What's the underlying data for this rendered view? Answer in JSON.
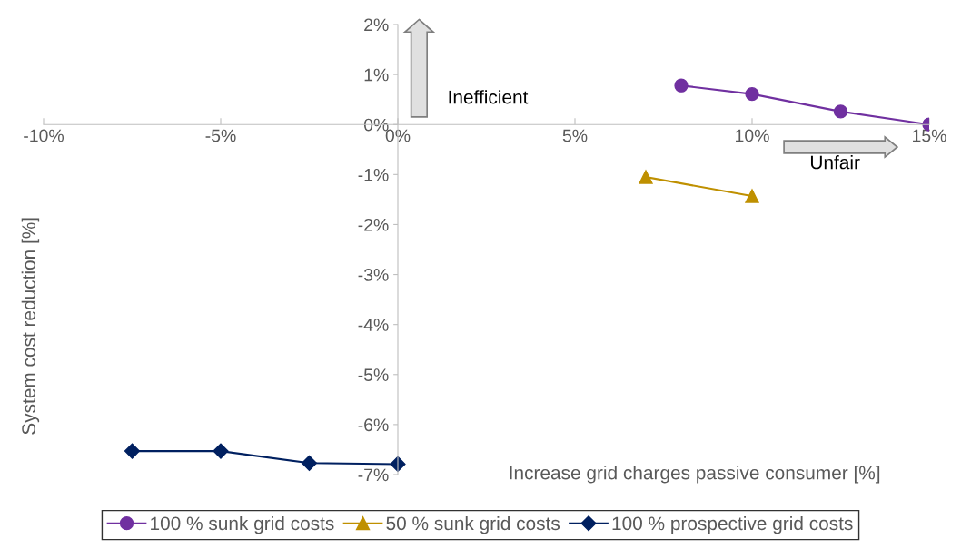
{
  "chart_data": {
    "type": "line",
    "xlabel": "Increase grid charges passive consumer [%]",
    "ylabel": "System cost reduction [%]",
    "series": [
      {
        "name": "100 % sunk grid costs",
        "color": "#7030a0",
        "marker": "circle",
        "x": [
          8,
          10,
          12.5,
          15
        ],
        "values": [
          0.78,
          0.61,
          0.26,
          0
        ]
      },
      {
        "name": "50 % sunk grid costs",
        "color": "#bf9000",
        "marker": "triangle",
        "x": [
          7,
          10
        ],
        "values": [
          -1.05,
          -1.43
        ]
      },
      {
        "name": "100 % prospective grid costs",
        "color": "#002060",
        "marker": "diamond",
        "x": [
          -7.5,
          -5,
          -2.5,
          0
        ],
        "values": [
          -6.53,
          -6.53,
          -6.77,
          -6.79
        ]
      }
    ],
    "xlim": [
      -10,
      15
    ],
    "ylim": [
      -7,
      2
    ],
    "xticks": [
      {
        "value": -10,
        "label": "-10%"
      },
      {
        "value": -5,
        "label": "-5%"
      },
      {
        "value": 0,
        "label": "0%"
      },
      {
        "value": 5,
        "label": "5%"
      },
      {
        "value": 10,
        "label": "10%"
      },
      {
        "value": 15,
        "label": "15%"
      }
    ],
    "yticks": [
      {
        "value": -7,
        "label": "-7%"
      },
      {
        "value": -6,
        "label": "-6%"
      },
      {
        "value": -5,
        "label": "-5%"
      },
      {
        "value": -4,
        "label": "-4%"
      },
      {
        "value": -3,
        "label": "-3%"
      },
      {
        "value": -2,
        "label": "-2%"
      },
      {
        "value": -1,
        "label": "-1%"
      },
      {
        "value": 0,
        "label": "0%"
      },
      {
        "value": 1,
        "label": "1%"
      },
      {
        "value": 2,
        "label": "2%"
      }
    ],
    "annotations": [
      "Inefficient",
      "Unfair"
    ],
    "grid": false,
    "legend": "bottom",
    "line_style": "solid"
  }
}
